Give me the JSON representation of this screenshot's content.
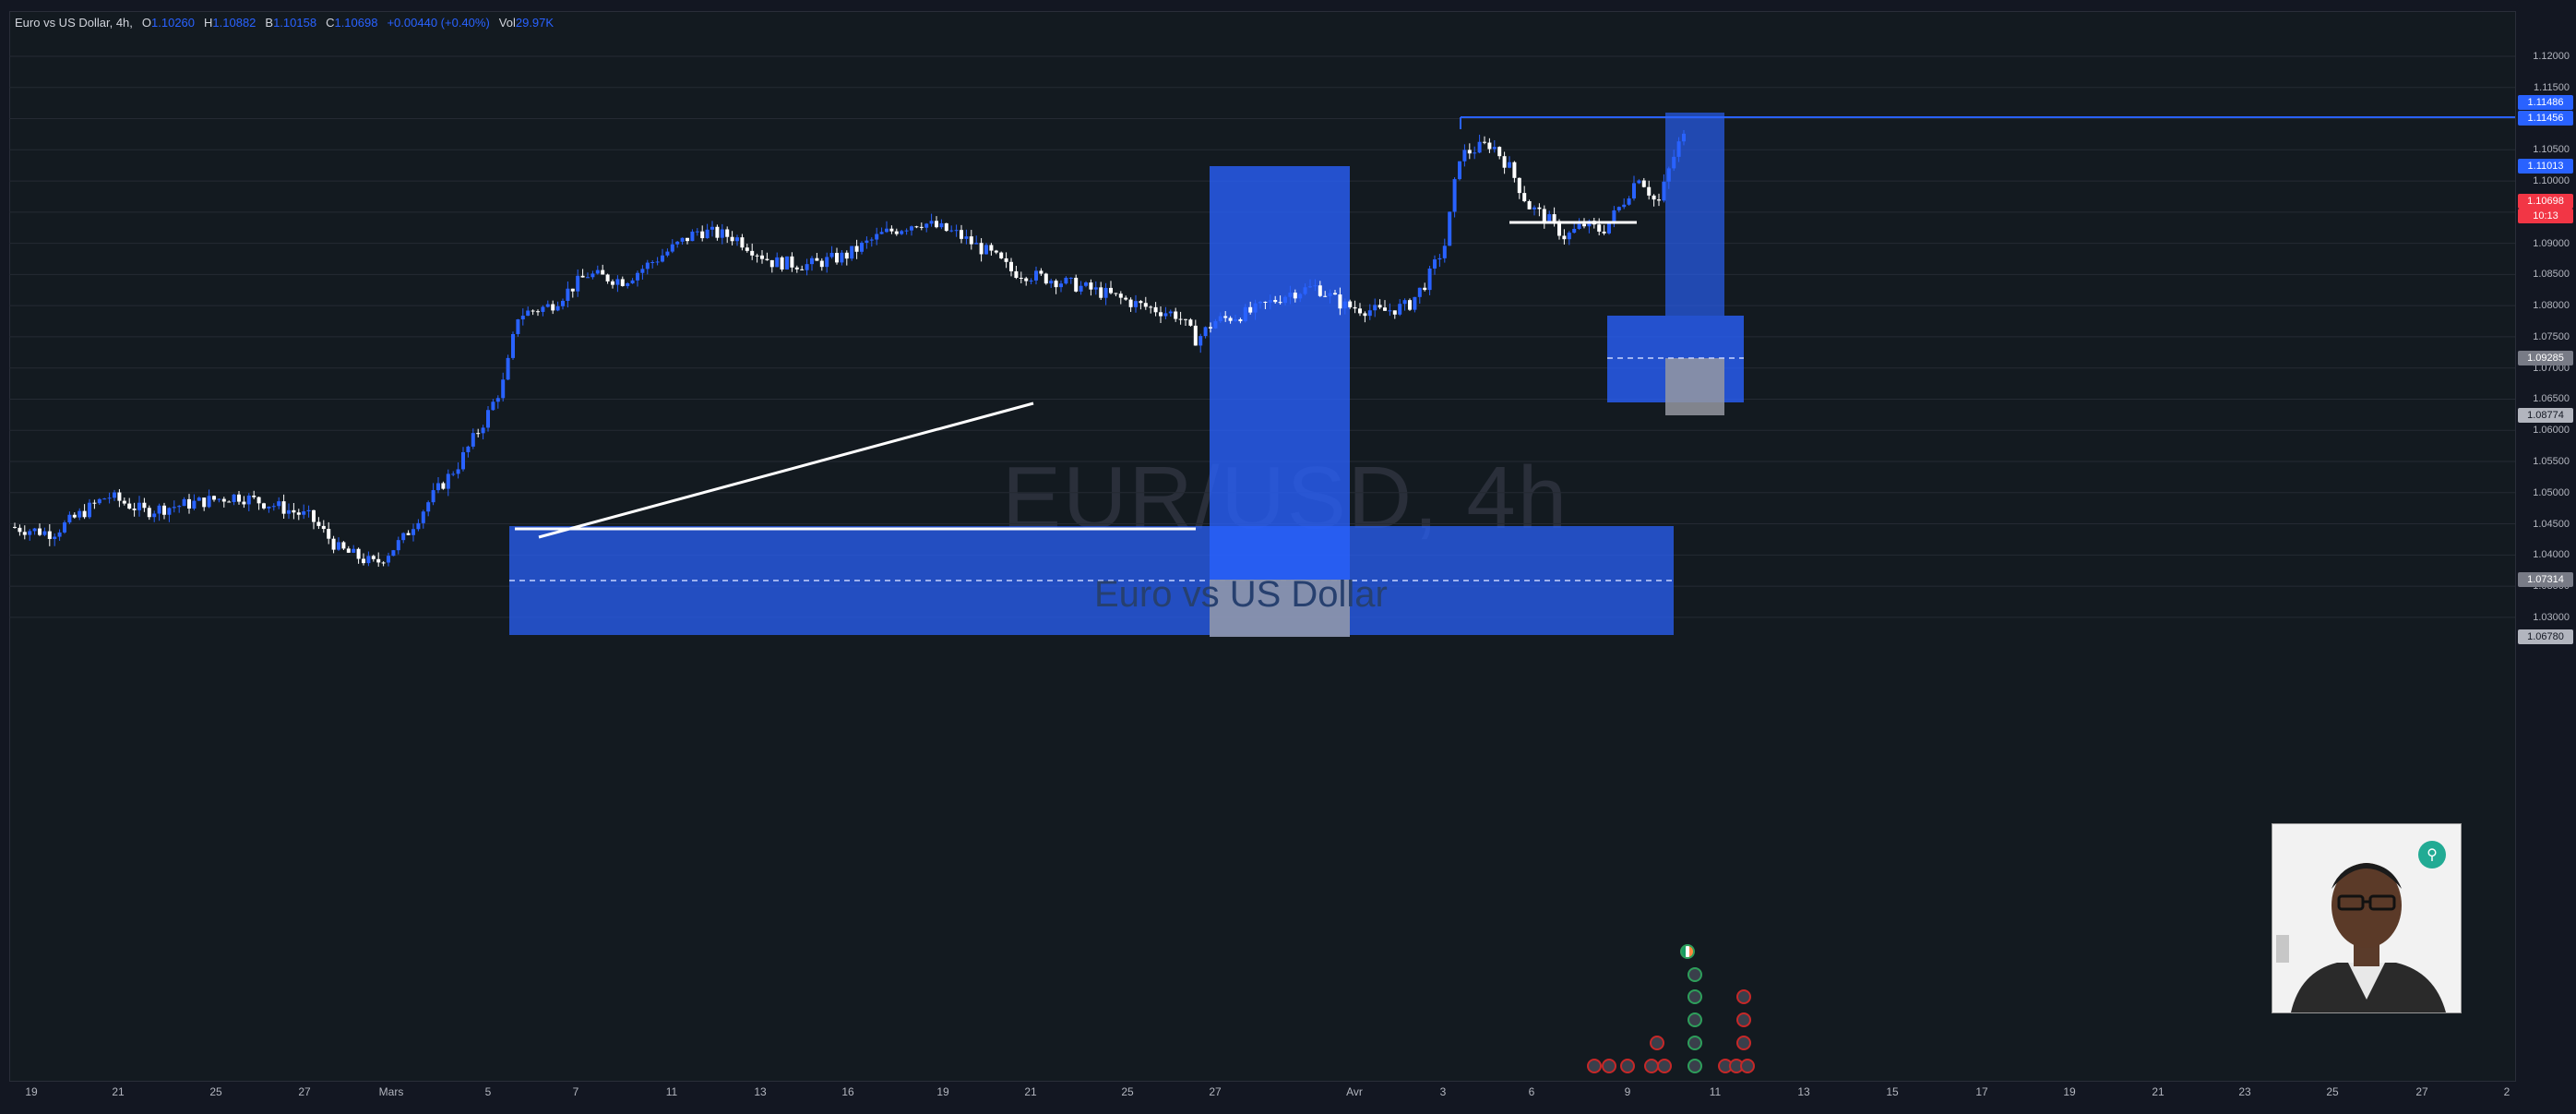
{
  "header": {
    "symbol": "Euro vs US Dollar, 4h,",
    "open_label": "O",
    "open": "1.10260",
    "high_label": "H",
    "high": "1.10882",
    "low_label": "B",
    "low": "1.10158",
    "close_label": "C",
    "close": "1.10698",
    "change": "+0.00440 (+0.40%)",
    "vol_label": "Vol",
    "vol": "29.97K"
  },
  "watermark": {
    "title": "EUR/USD, 4h",
    "subtitle": "Euro vs US Dollar"
  },
  "chart_data": {
    "type": "candlestick",
    "y_ticks": [
      "1.12000",
      "1.11500",
      "1.11000",
      "1.10500",
      "1.10000",
      "1.09500",
      "1.09000",
      "1.08500",
      "1.08000",
      "1.07500",
      "1.07000",
      "1.06500",
      "1.06000",
      "1.05500",
      "1.05000",
      "1.04500",
      "1.04000",
      "1.03500",
      "1.03000"
    ],
    "ylim": [
      1.0285,
      1.1231
    ],
    "x_ticks": [
      "19",
      "21",
      "25",
      "27",
      "Mars",
      "5",
      "7",
      "11",
      "13",
      "16",
      "19",
      "21",
      "25",
      "27",
      "Avr",
      "3",
      "6",
      "9",
      "11",
      "13",
      "15",
      "17",
      "19",
      "21",
      "23",
      "25",
      "27",
      "2"
    ],
    "price_tags": [
      {
        "value": "1.11486",
        "color": "#2962ff"
      },
      {
        "value": "1.11456",
        "color": "#2962ff"
      },
      {
        "value": "1.11013",
        "color": "#2962ff"
      },
      {
        "value": "1.10698",
        "color": "#f23645",
        "countdown": "10:13"
      },
      {
        "value": "1.09285",
        "color": "#787b86"
      },
      {
        "value": "1.08774",
        "color": "#b2b5be"
      },
      {
        "value": "1.07314",
        "color": "#787b86"
      },
      {
        "value": "1.06780",
        "color": "#b2b5be"
      }
    ],
    "colors": {
      "up": "#2962ff",
      "down": "#ffffff",
      "zone": "#2962ff",
      "grey_zone": "#9598a1"
    }
  },
  "icons": {
    "profile": "avatar-photo",
    "badge": "search-icon"
  }
}
